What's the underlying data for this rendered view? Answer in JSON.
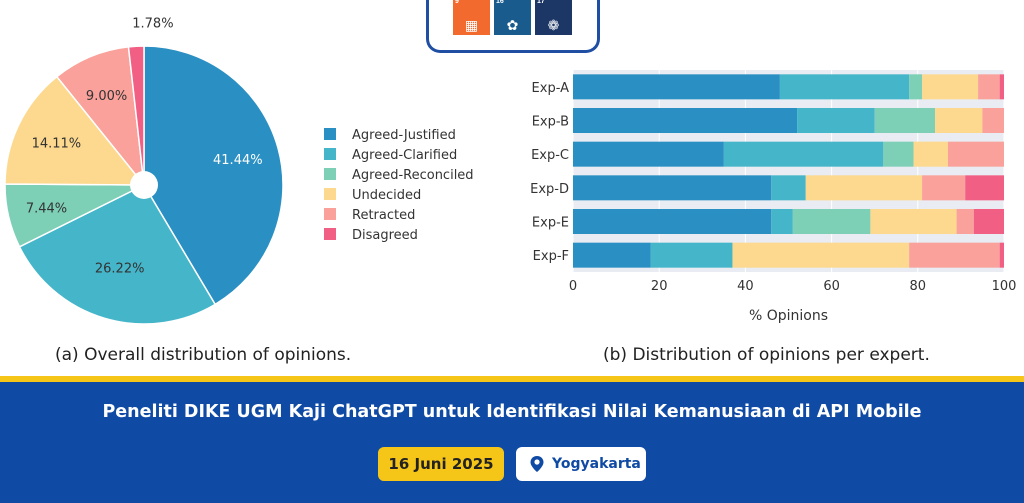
{
  "sdg_tiles": [
    {
      "number": "9",
      "color": "#f26a2e",
      "icon": "industry-blocks-icon"
    },
    {
      "number": "16",
      "color": "#1a5b8e",
      "icon": "dove-gavel-icon"
    },
    {
      "number": "17",
      "color": "#1c3766",
      "icon": "partnership-ring-icon"
    }
  ],
  "chart_data": [
    {
      "type": "pie",
      "caption": "(a) Overall distribution of opinions.",
      "labels": [
        "Agreed-Justified",
        "Agreed-Clarified",
        "Agreed-Reconciled",
        "Undecided",
        "Retracted",
        "Disagreed"
      ],
      "values": [
        41.44,
        26.22,
        7.44,
        14.11,
        9.0,
        1.78
      ],
      "value_labels": [
        "41.44%",
        "26.22%",
        "7.44%",
        "14.11%",
        "9.00%",
        "1.78%"
      ],
      "colors": [
        "#2a8fc2",
        "#45b5c9",
        "#7dcfb6",
        "#fcd98e",
        "#f9a19a",
        "#f25f84"
      ],
      "legend_position": "right"
    },
    {
      "type": "bar",
      "orientation": "horizontal",
      "stacked": true,
      "caption": "(b) Distribution of opinions per expert.",
      "categories": [
        "Exp-A",
        "Exp-B",
        "Exp-C",
        "Exp-D",
        "Exp-E",
        "Exp-F"
      ],
      "xlabel": "% Opinions",
      "xlim": [
        0,
        100
      ],
      "xticks": [
        "0",
        "20",
        "40",
        "60",
        "80",
        "100"
      ],
      "series": [
        {
          "name": "Agreed-Justified",
          "color": "#2a8fc2",
          "values": [
            48,
            52,
            35,
            46,
            46,
            18
          ]
        },
        {
          "name": "Agreed-Clarified",
          "color": "#45b5c9",
          "values": [
            30,
            18,
            37,
            8,
            5,
            19
          ]
        },
        {
          "name": "Agreed-Reconciled",
          "color": "#7dcfb6",
          "values": [
            3,
            14,
            7,
            0,
            18,
            0
          ]
        },
        {
          "name": "Undecided",
          "color": "#fcd98e",
          "values": [
            13,
            11,
            8,
            27,
            20,
            41
          ]
        },
        {
          "name": "Retracted",
          "color": "#f9a19a",
          "values": [
            5,
            5,
            13,
            10,
            4,
            21
          ]
        },
        {
          "name": "Disagreed",
          "color": "#f25f84",
          "values": [
            1,
            0,
            0,
            9,
            7,
            1
          ]
        }
      ]
    }
  ],
  "banner": {
    "title": "Peneliti DIKE UGM Kaji ChatGPT untuk Identifikasi Nilai Kemanusiaan di API Mobile",
    "date": "16 Juni 2025",
    "location": "Yogyakarta",
    "stripe_color": "#f5c518",
    "background_color": "#0f4aa4"
  }
}
